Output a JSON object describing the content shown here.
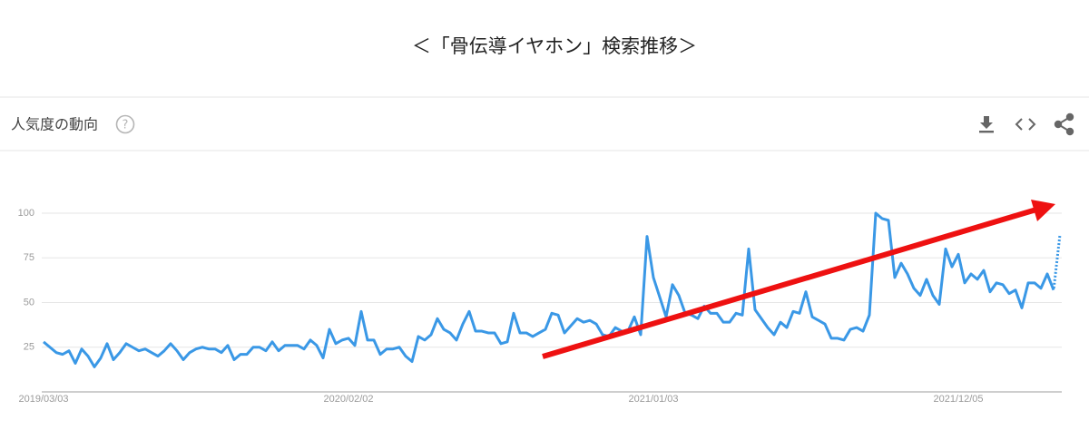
{
  "chart_data": {
    "type": "line",
    "title": "＜「骨伝導イヤホン」検索推移＞",
    "subtitle": "人気度の動向",
    "help_icon": "?",
    "color": "#3a98e6",
    "grid": true,
    "last_point_partial": true,
    "ylim": [
      0,
      100
    ],
    "yticks": [
      25,
      50,
      75,
      100
    ],
    "categories": [
      "2019/03/03",
      null,
      null,
      null,
      null,
      null,
      null,
      null,
      null,
      null,
      null,
      null,
      null,
      null,
      null,
      null,
      null,
      null,
      null,
      null,
      null,
      null,
      null,
      null,
      null,
      null,
      null,
      null,
      null,
      null,
      null,
      null,
      null,
      null,
      null,
      null,
      null,
      null,
      null,
      null,
      null,
      null,
      null,
      null,
      null,
      null,
      null,
      null,
      "2020/02/02",
      null,
      null,
      null,
      null,
      null,
      null,
      null,
      null,
      null,
      null,
      null,
      null,
      null,
      null,
      null,
      null,
      null,
      null,
      null,
      null,
      null,
      null,
      null,
      null,
      null,
      null,
      null,
      null,
      null,
      null,
      null,
      null,
      null,
      null,
      null,
      null,
      null,
      null,
      null,
      null,
      null,
      null,
      null,
      null,
      null,
      null,
      null,
      "2021/01/03",
      null,
      null,
      null,
      null,
      null,
      null,
      null,
      null,
      null,
      null,
      null,
      null,
      null,
      null,
      null,
      null,
      null,
      null,
      null,
      null,
      null,
      null,
      null,
      null,
      null,
      null,
      null,
      null,
      null,
      null,
      null,
      null,
      null,
      null,
      null,
      null,
      null,
      null,
      null,
      null,
      null,
      null,
      null,
      null,
      null,
      null,
      null,
      "2021/12/05",
      null,
      null,
      null,
      null,
      null,
      null,
      null,
      null,
      null,
      null,
      null,
      null,
      null,
      null,
      null,
      null
    ],
    "values": [
      28,
      25,
      22,
      21,
      23,
      16,
      24,
      20,
      14,
      19,
      27,
      18,
      22,
      27,
      25,
      23,
      24,
      22,
      20,
      23,
      27,
      23,
      18,
      22,
      24,
      25,
      24,
      24,
      22,
      26,
      18,
      21,
      21,
      25,
      25,
      23,
      28,
      23,
      26,
      26,
      26,
      24,
      29,
      26,
      19,
      35,
      27,
      29,
      30,
      26,
      45,
      29,
      29,
      21,
      24,
      24,
      25,
      20,
      17,
      31,
      29,
      32,
      41,
      35,
      33,
      29,
      38,
      45,
      34,
      34,
      33,
      33,
      27,
      28,
      44,
      33,
      33,
      31,
      33,
      35,
      44,
      43,
      33,
      37,
      41,
      39,
      40,
      38,
      32,
      31,
      36,
      34,
      34,
      42,
      32,
      87,
      64,
      53,
      42,
      60,
      54,
      44,
      43,
      41,
      48,
      44,
      44,
      39,
      39,
      44,
      43,
      80,
      46,
      41,
      36,
      32,
      39,
      36,
      45,
      44,
      56,
      42,
      40,
      38,
      30,
      30,
      29,
      35,
      36,
      34,
      43,
      100,
      97,
      96,
      64,
      72,
      66,
      58,
      54,
      63,
      54,
      49,
      80,
      70,
      77,
      61,
      66,
      63,
      68,
      56,
      61,
      60,
      55,
      57,
      47,
      61,
      61,
      58,
      66,
      57,
      88
    ]
  }
}
